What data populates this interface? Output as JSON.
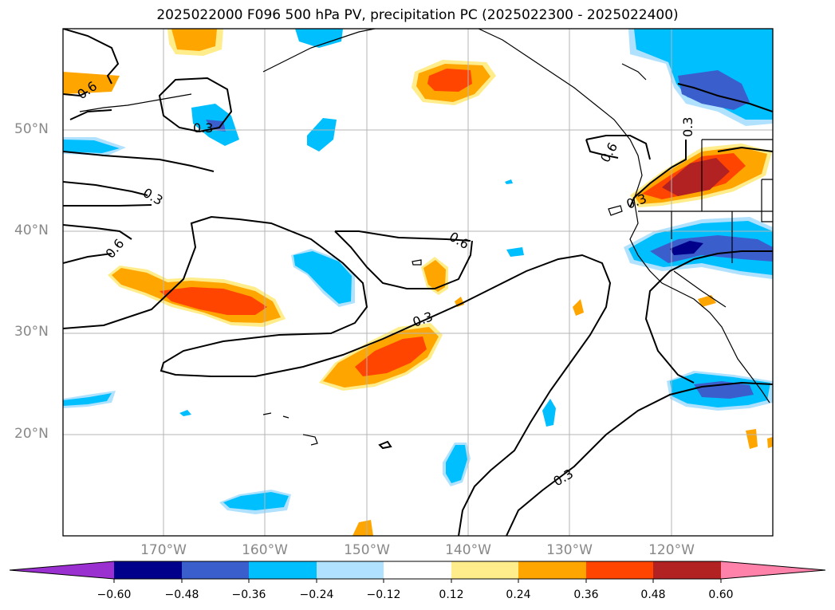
{
  "title": "2025022000 F096 500 hPa PV, precipitation PC (2025022300 - 2025022400)",
  "lat_labels": [
    "50°N",
    "40°N",
    "30°N",
    "20°N"
  ],
  "lon_labels": [
    "170°W",
    "160°W",
    "150°W",
    "140°W",
    "130°W",
    "120°W"
  ],
  "contour_labels": [
    "0.6",
    "0.3",
    "0.3",
    "0.6",
    "0.6",
    "0.3",
    "0.6",
    "0.3",
    "0.3",
    "0.3"
  ],
  "colorbar": {
    "tick_labels": [
      "−0.60",
      "−0.48",
      "−0.36",
      "−0.24",
      "−0.12",
      "0.12",
      "0.24",
      "0.36",
      "0.48",
      "0.60"
    ],
    "colors": [
      "#9b30d0",
      "#00008b",
      "#3a5fcd",
      "#00bfff",
      "#b0e2ff",
      "#ffffff",
      "#ffec8b",
      "#ffa500",
      "#ff4500",
      "#b22222",
      "#ff82ab"
    ]
  },
  "colors": {
    "pos_light": "#ffec8b",
    "pos_orange": "#ffa500",
    "pos_red": "#ff4500",
    "pos_darkred": "#b22222",
    "neg_light": "#b0e2ff",
    "neg_cyan": "#00bfff",
    "neg_blue": "#3a5fcd",
    "neg_navy": "#00008b"
  }
}
